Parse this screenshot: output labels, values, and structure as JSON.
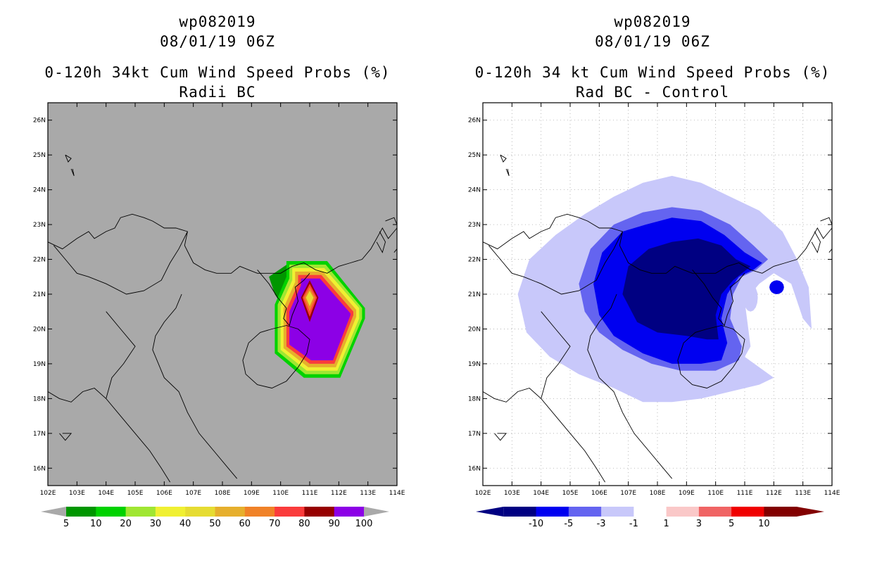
{
  "left_panel": {
    "storm_id": "wp082019",
    "datetime": "08/01/19 06Z",
    "title": "0-120h 34kt Cum Wind Speed Probs (%)",
    "subtitle": "Radii BC",
    "background_color": "#a9a9a9",
    "colorbar": {
      "colors": [
        "#009600",
        "#00d200",
        "#a0e632",
        "#f0f032",
        "#e6dc32",
        "#e6af2d",
        "#f08228",
        "#fa3c3c",
        "#960000",
        "#8c00e6"
      ],
      "labels": [
        "5",
        "10",
        "20",
        "30",
        "40",
        "50",
        "60",
        "70",
        "80",
        "90",
        "100"
      ]
    }
  },
  "right_panel": {
    "storm_id": "wp082019",
    "datetime": "08/01/19 06Z",
    "title": "0-120h 34 kt Cum Wind Speed Probs (%)",
    "subtitle": "Rad BC - Control",
    "background_color": "#ffffff",
    "colorbar": {
      "colors": [
        "#000082",
        "#0000f0",
        "#6464f0",
        "#c8c8fa",
        "#ffffff",
        "#fac8c8",
        "#f06464",
        "#f00000",
        "#820000"
      ],
      "labels": [
        "-10",
        "-5",
        "-3",
        "-1",
        "1",
        "3",
        "5",
        "10"
      ]
    }
  },
  "map": {
    "lon_labels": [
      "102E",
      "103E",
      "104E",
      "105E",
      "106E",
      "107E",
      "108E",
      "109E",
      "110E",
      "111E",
      "112E",
      "113E",
      "114E"
    ],
    "lat_labels": [
      "16N",
      "17N",
      "18N",
      "19N",
      "20N",
      "21N",
      "22N",
      "23N",
      "24N",
      "25N",
      "26N"
    ],
    "lon_range": [
      102,
      114
    ],
    "lat_range": [
      15.5,
      26.5
    ]
  },
  "colors": {
    "grid": "#aaaaaa",
    "coast": "#000000"
  }
}
